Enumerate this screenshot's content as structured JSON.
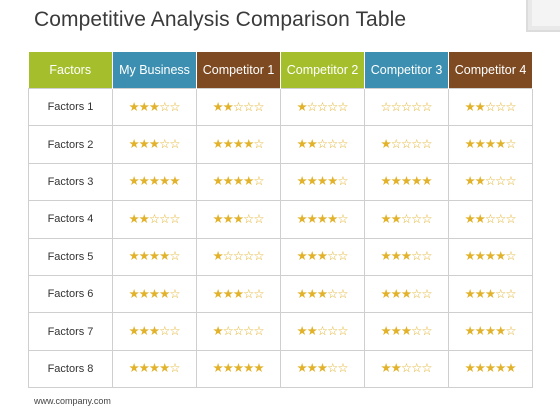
{
  "title": "Competitive Analysis Comparison Table",
  "footer": "www.company.com",
  "colors": {
    "factors_header": "#a4bf2b",
    "my_business_header": "#3c8fb0",
    "competitor1_header": "#7e4a22",
    "competitor2_header": "#a4bf2b",
    "competitor3_header": "#3c8fb0",
    "competitor4_header": "#7e4a22",
    "star": "#e2b22b"
  },
  "headers": [
    "Factors",
    "My Business",
    "Competitor 1",
    "Competitor 2",
    "Competitor 3",
    "Competitor 4"
  ],
  "rows": [
    {
      "label": "Factors 1",
      "ratings": [
        3,
        2,
        1,
        0,
        2
      ]
    },
    {
      "label": "Factors 2",
      "ratings": [
        3,
        4,
        2,
        1,
        4
      ]
    },
    {
      "label": "Factors 3",
      "ratings": [
        5,
        4,
        4,
        5,
        2
      ]
    },
    {
      "label": "Factors 4",
      "ratings": [
        2,
        3,
        4,
        2,
        2
      ]
    },
    {
      "label": "Factors 5",
      "ratings": [
        4,
        1,
        3,
        3,
        4
      ]
    },
    {
      "label": "Factors 6",
      "ratings": [
        4,
        3,
        3,
        3,
        3
      ]
    },
    {
      "label": "Factors 7",
      "ratings": [
        3,
        1,
        2,
        3,
        4
      ]
    },
    {
      "label": "Factors 8",
      "ratings": [
        4,
        5,
        3,
        2,
        5
      ]
    }
  ],
  "max_stars": 5
}
